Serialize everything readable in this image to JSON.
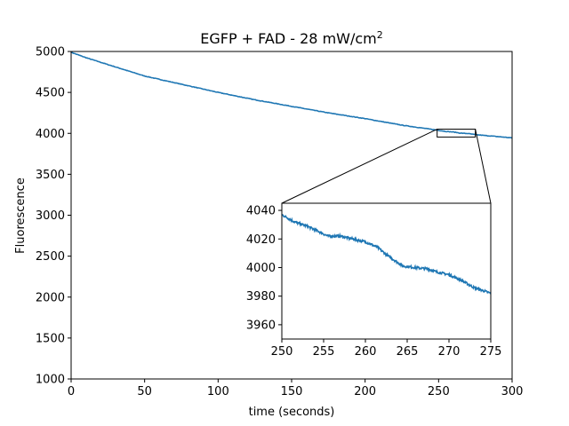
{
  "chart_data": {
    "type": "line",
    "title": "EGFP + FAD - 28 mW/cm",
    "title_superscript": "2",
    "xlabel": "time (seconds)",
    "ylabel": "Fluorescence",
    "xlim": [
      0,
      300
    ],
    "ylim": [
      1000,
      5000
    ],
    "xticks": [
      "0",
      "50",
      "100",
      "150",
      "200",
      "250",
      "300"
    ],
    "yticks": [
      "1000",
      "1500",
      "2000",
      "2500",
      "3000",
      "3500",
      "4000",
      "4500",
      "5000"
    ],
    "grid": false,
    "series_color": "#1f77b4",
    "series": [
      {
        "x": [
          0,
          10,
          25,
          50,
          75,
          100,
          125,
          150,
          175,
          200,
          225,
          250,
          255,
          260,
          265,
          270,
          275,
          300
        ],
        "y": [
          4990,
          4925,
          4840,
          4700,
          4600,
          4500,
          4410,
          4330,
          4250,
          4180,
          4100,
          4037,
          4023,
          4017,
          4002,
          3998,
          3984,
          3945
        ]
      }
    ],
    "inset": {
      "xlim": [
        250,
        275
      ],
      "ylim": [
        3950,
        4045
      ],
      "xticks": [
        "250",
        "255",
        "260",
        "265",
        "270",
        "275"
      ],
      "yticks": [
        "3960",
        "3980",
        "4000",
        "4020",
        "4040"
      ],
      "zoom_region": {
        "x": [
          249,
          275
        ],
        "y": [
          3955,
          4051
        ]
      },
      "series": [
        {
          "x": [
            250,
            251.5,
            253,
            254.5,
            255.5,
            257,
            258.5,
            260,
            261.5,
            262.5,
            263.5,
            264.5,
            266,
            267.5,
            268.5,
            270,
            271.5,
            273,
            274,
            275
          ],
          "y": [
            4037,
            4032,
            4029,
            4025,
            4022,
            4022,
            4020,
            4018,
            4014,
            4009,
            4005,
            4001,
            4000,
            3999,
            3997,
            3995,
            3991,
            3986,
            3984,
            3982
          ]
        }
      ]
    }
  }
}
